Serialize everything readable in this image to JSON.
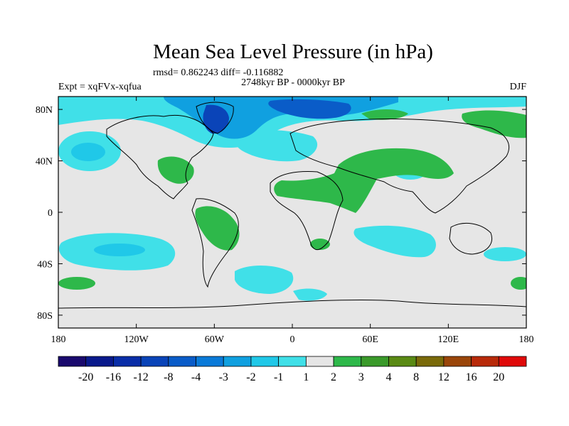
{
  "chart_data": {
    "type": "contour-map",
    "title": "Mean Sea Level Pressure (in hPa)",
    "stats_text": "rmsd= 0.862243 diff= -0.116882",
    "period": "2748kyr BP - 0000kyr BP",
    "experiment": "Expt = xqFVx-xqfua",
    "season": "DJF",
    "lon_range": [
      -180,
      180
    ],
    "lat_range": [
      -90,
      90
    ],
    "x_ticks": [
      {
        "value": -180,
        "label": "180"
      },
      {
        "value": -120,
        "label": "120W"
      },
      {
        "value": -60,
        "label": "60W"
      },
      {
        "value": 0,
        "label": "0"
      },
      {
        "value": 60,
        "label": "60E"
      },
      {
        "value": 120,
        "label": "120E"
      },
      {
        "value": 180,
        "label": "180"
      }
    ],
    "y_ticks": [
      {
        "value": 80,
        "label": "80N"
      },
      {
        "value": 40,
        "label": "40N"
      },
      {
        "value": 0,
        "label": "0"
      },
      {
        "value": -40,
        "label": "40S"
      },
      {
        "value": -80,
        "label": "80S"
      }
    ],
    "colorbar": {
      "boundaries": [
        "-20",
        "-16",
        "-12",
        "-8",
        "-4",
        "-3",
        "-2",
        "-1",
        "1",
        "2",
        "3",
        "4",
        "8",
        "12",
        "16",
        "20"
      ],
      "colors": [
        "#1a0a6e",
        "#0a1a8c",
        "#0a2ea8",
        "#0a44b8",
        "#0a5cc8",
        "#0a7ad8",
        "#10a0e0",
        "#20c8e8",
        "#40e0e8",
        "#e6e6e6",
        "#2eb84a",
        "#3a9a2a",
        "#5a8a14",
        "#7a6a0a",
        "#9a460a",
        "#b82a0a",
        "#e00a0a"
      ]
    },
    "regions": [
      {
        "name": "North Pacific low anomaly",
        "lon": -160,
        "lat": 42,
        "level": "-2 to -1",
        "color": "#40e0e8"
      },
      {
        "name": "North Pacific low anomaly core",
        "lon": -162,
        "lat": 42,
        "level": "-3 to -2",
        "color": "#20c8e8"
      },
      {
        "name": "Greenland-Arctic low anomaly",
        "lon": -30,
        "lat": 78,
        "level": "-4 to -2",
        "color": "#0a7ad8"
      },
      {
        "name": "North Atlantic low anomaly",
        "lon": -15,
        "lat": 45,
        "level": "-2 to -1",
        "color": "#40e0e8"
      },
      {
        "name": "Tibetan Plateau low anomaly",
        "lon": 90,
        "lat": 32,
        "level": "-3 to -2",
        "color": "#20c8e8"
      },
      {
        "name": "Sahara-Arabia high anomaly",
        "lon": 25,
        "lat": 22,
        "level": "1 to 2",
        "color": "#2eb84a"
      },
      {
        "name": "North America high anomaly",
        "lon": -90,
        "lat": 35,
        "level": "1 to 2",
        "color": "#2eb84a"
      },
      {
        "name": "South America high anomaly",
        "lon": -55,
        "lat": -15,
        "level": "1 to 2",
        "color": "#2eb84a"
      },
      {
        "name": "Siberia high anomaly",
        "lon": 140,
        "lat": 68,
        "level": "1 to 2",
        "color": "#2eb84a"
      },
      {
        "name": "South Pacific low anomaly",
        "lon": -140,
        "lat": -33,
        "level": "-2 to -1",
        "color": "#40e0e8"
      },
      {
        "name": "Southern Indian Ocean low anomaly",
        "lon": 60,
        "lat": -25,
        "level": "-2 to -1",
        "color": "#40e0e8"
      },
      {
        "name": "South Atlantic low anomaly",
        "lon": -10,
        "lat": -58,
        "level": "-2 to -1",
        "color": "#40e0e8"
      },
      {
        "name": "Southern Ocean high anomaly",
        "lon": -170,
        "lat": -60,
        "level": "1 to 2",
        "color": "#2eb84a"
      }
    ]
  }
}
